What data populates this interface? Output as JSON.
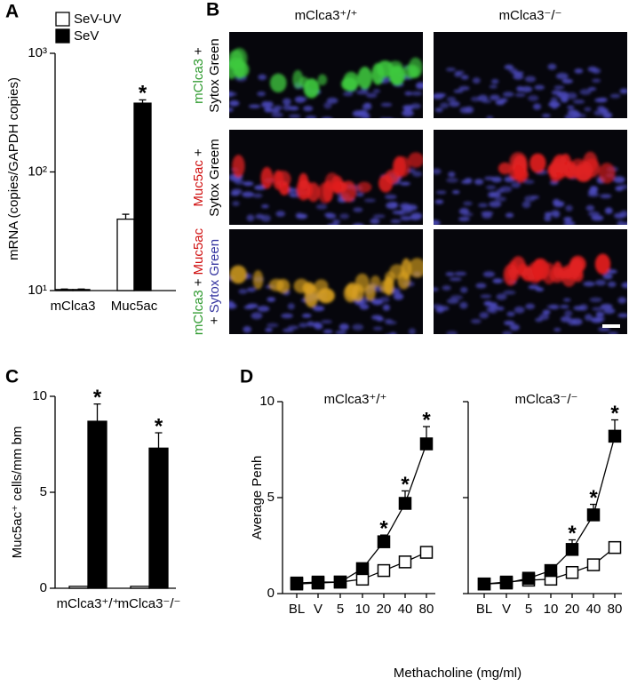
{
  "chart_data": [
    {
      "type": "bar",
      "panel": "A",
      "ylabel": "mRNA (copies/GAPDH copies)",
      "categories": [
        "mClca3",
        "Muc5ac"
      ],
      "series": [
        {
          "name": "SeV-UV",
          "color": "#ffffff",
          "values": [
            10.2,
            40
          ],
          "errors": [
            0.1,
            4
          ],
          "annotations": [
            null,
            null
          ]
        },
        {
          "name": "SeV",
          "color": "#000000",
          "values": [
            10.2,
            380
          ],
          "errors": [
            0.1,
            25
          ],
          "annotations": [
            null,
            "*"
          ]
        }
      ],
      "ylim": [
        10,
        1000
      ],
      "yticks": [
        {
          "value": 10,
          "label": "10¹"
        },
        {
          "value": 100,
          "label": "10²"
        },
        {
          "value": 1000,
          "label": "10³"
        }
      ],
      "log_scale": true,
      "legend": "top-left"
    },
    {
      "type": "bar",
      "panel": "C",
      "ylabel": "Muc5ac⁺ cells/mm bm",
      "categories": [
        "mClca3⁺/⁺",
        "mClca3⁻/⁻"
      ],
      "series": [
        {
          "color": "#ffffff",
          "values": [
            0.1,
            0.1
          ],
          "annotations": [
            null,
            null
          ]
        },
        {
          "color": "#000000",
          "values": [
            8.7,
            7.3
          ],
          "errors": [
            0.9,
            0.8
          ],
          "annotations": [
            "*",
            "*"
          ]
        }
      ],
      "ylim": [
        0,
        10
      ],
      "yticks": [
        0,
        5,
        10
      ]
    },
    {
      "type": "line",
      "panel": "D",
      "title": "mClca3⁺/⁺",
      "ylabel": "Average Penh",
      "categories": [
        "BL",
        "V",
        "5",
        "10",
        "20",
        "40",
        "80"
      ],
      "series": [
        {
          "color": "#ffffff",
          "values": [
            0.5,
            0.55,
            0.6,
            0.75,
            1.2,
            1.65,
            2.15
          ]
        },
        {
          "color": "#000000",
          "values": [
            0.55,
            0.6,
            0.6,
            1.3,
            2.7,
            4.7,
            7.8
          ],
          "errors": [
            0.1,
            0.1,
            0.1,
            0.2,
            0.35,
            0.65,
            0.9
          ],
          "annotations": [
            null,
            null,
            null,
            null,
            "*",
            "*",
            "*"
          ]
        }
      ],
      "ylim": [
        0,
        10
      ],
      "yticks": [
        0,
        5,
        10
      ]
    },
    {
      "type": "line",
      "title": "mClca3⁻/⁻",
      "xlabel": "Methacholine (mg/ml)",
      "categories": [
        "BL",
        "V",
        "5",
        "10",
        "20",
        "40",
        "80"
      ],
      "series": [
        {
          "color": "#ffffff",
          "values": [
            0.5,
            0.6,
            0.7,
            0.75,
            1.1,
            1.5,
            2.4
          ]
        },
        {
          "color": "#000000",
          "values": [
            0.5,
            0.55,
            0.8,
            1.2,
            2.3,
            4.1,
            8.2
          ],
          "errors": [
            0.1,
            0.1,
            0.1,
            0.15,
            0.5,
            0.55,
            0.85
          ],
          "annotations": [
            null,
            null,
            null,
            null,
            "*",
            "*",
            "*"
          ]
        }
      ],
      "ylim": [
        0,
        10
      ],
      "yticks": [
        0,
        5,
        10
      ]
    }
  ],
  "panel_b": {
    "panel": "B",
    "columns": [
      "mClca3⁺/⁺",
      "mClca3⁻/⁻"
    ],
    "rows": [
      {
        "line1": [
          "mClca3",
          "+"
        ],
        "line2": [
          "Sytox Green"
        ]
      },
      {
        "line1": [
          "Muc5ac",
          "+"
        ],
        "line2": [
          "Sytox Greem"
        ]
      },
      {
        "line1": [
          "mClca3",
          "+",
          "Muc5ac"
        ],
        "line2": [
          "+",
          "Sytox Green"
        ]
      }
    ]
  }
}
